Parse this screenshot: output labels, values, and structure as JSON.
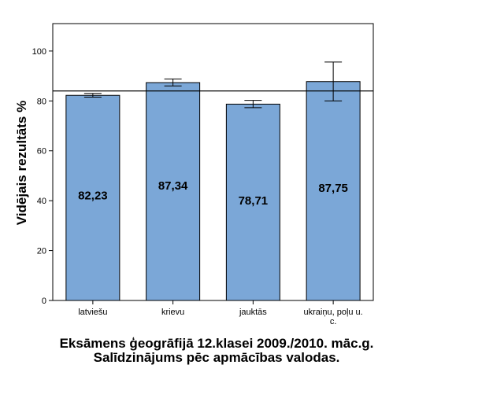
{
  "chart_data": {
    "type": "bar",
    "title": "Eksāmens ģeogrāfijā 12.klasei 2009./2010. māc.g. Salīdzinājums pēc apmācības valodas.",
    "ylabel": "Vidējais rezultāts %",
    "xlabel": "",
    "categories": [
      "latviešu",
      "krievu",
      "jauktās",
      "ukraiņu, poļu u. c."
    ],
    "values": [
      82.23,
      87.34,
      78.71,
      87.75
    ],
    "value_labels": [
      "82,23",
      "87,34",
      "78,71",
      "87,75"
    ],
    "error_low": [
      81.5,
      86.0,
      77.3,
      80.0
    ],
    "error_high": [
      83.0,
      88.8,
      80.2,
      95.6
    ],
    "reference_line": 84.0,
    "ylim": [
      0,
      111
    ],
    "yticks": [
      0,
      20,
      40,
      60,
      80,
      100
    ],
    "bar_color": "#7ba7d7",
    "grid": false
  }
}
